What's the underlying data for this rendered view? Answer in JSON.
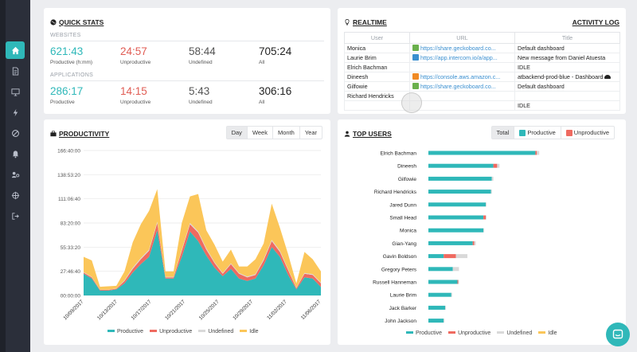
{
  "colors": {
    "teal": "#2fb8b9",
    "red": "#ef6a60",
    "gray": "#d9d9d9",
    "yellow": "#fbc659",
    "url_blue": "#3a8fd0"
  },
  "sidebar": {
    "items": [
      {
        "icon": "home-icon",
        "active": true
      },
      {
        "icon": "document-icon"
      },
      {
        "icon": "monitor-icon"
      },
      {
        "icon": "lightning-icon"
      },
      {
        "icon": "block-icon"
      },
      {
        "icon": "bell-icon"
      },
      {
        "icon": "users-settings-icon"
      },
      {
        "icon": "crosshair-icon"
      },
      {
        "icon": "logout-icon"
      }
    ]
  },
  "quick_stats": {
    "title": "QUICK STATS",
    "sections": [
      {
        "label": "WEBSITES",
        "stats": [
          {
            "value": "621:43",
            "label": "Productive (h:mm)",
            "color": "#2fb8b9"
          },
          {
            "value": "24:57",
            "label": "Unproductive",
            "color": "#e05d55"
          },
          {
            "value": "58:44",
            "label": "Undefined",
            "color": "#555555"
          },
          {
            "value": "705:24",
            "label": "All",
            "color": "#222222"
          }
        ]
      },
      {
        "label": "APPLICATIONS",
        "stats": [
          {
            "value": "286:17",
            "label": "Productive",
            "color": "#2fb8b9"
          },
          {
            "value": "14:15",
            "label": "Unproductive",
            "color": "#e05d55"
          },
          {
            "value": "5:43",
            "label": "Undefined",
            "color": "#555555"
          },
          {
            "value": "306:16",
            "label": "All",
            "color": "#222222"
          }
        ]
      }
    ]
  },
  "realtime": {
    "title": "REALTIME",
    "activity_log": "ACTIVITY LOG",
    "columns": [
      "User",
      "URL",
      "Title"
    ],
    "rows": [
      {
        "user": "Monica",
        "url": "https://share.geckoboard.co...",
        "title": "Default dashboard",
        "fav": "#6ab04c"
      },
      {
        "user": "Laurie Brim",
        "url": "https://app.intercom.io/a/app...",
        "title": "New message from Daniel Atuesta",
        "fav": "#3a8fd0"
      },
      {
        "user": "Elrich Bachman",
        "url": "",
        "title": "IDLE",
        "fav": ""
      },
      {
        "user": "Dineesh",
        "url": "https://console.aws.amazon.c...",
        "title": "atbackend-prod-blue - Dashboard",
        "fav": "#f08a24"
      },
      {
        "user": "Gilfowie",
        "url": "https://share.geckoboard.co...",
        "title": "Default dashboard",
        "fav": "#6ab04c"
      },
      {
        "user": "Richard Hendricks",
        "url": "",
        "title": "",
        "fav": ""
      }
    ],
    "peek_row": "IDLE"
  },
  "productivity": {
    "title": "PRODUCTIVITY",
    "ranges": [
      "Day",
      "Week",
      "Month",
      "Year"
    ],
    "selected_range": "Day"
  },
  "top_users": {
    "title": "TOP USERS",
    "tabs": [
      "Total",
      "Productive",
      "Unproductive"
    ],
    "selected_tab": "Total"
  },
  "chart_data": [
    {
      "type": "area",
      "stacked": true,
      "yticks": [
        "166:40:00",
        "138:53:20",
        "111:06:40",
        "83:20:00",
        "55:33:20",
        "27:46:40",
        "00:00:00"
      ],
      "ylim": [
        0,
        600000
      ],
      "xtick_labels": [
        "10/09/2017",
        "10/13/2017",
        "10/17/2017",
        "10/21/2017",
        "10/25/2017",
        "10/29/2017",
        "11/02/2017",
        "11/06/2017"
      ],
      "x": [
        "10/09",
        "10/10",
        "10/11",
        "10/12",
        "10/13",
        "10/14",
        "10/15",
        "10/16",
        "10/17",
        "10/18",
        "10/19",
        "10/20",
        "10/21",
        "10/22",
        "10/23",
        "10/24",
        "10/25",
        "10/26",
        "10/27",
        "10/28",
        "10/29",
        "10/30",
        "10/31",
        "11/01",
        "11/02",
        "11/03",
        "11/04",
        "11/05",
        "11/06",
        "11/07"
      ],
      "series": [
        {
          "name": "Productive",
          "color": "#2fb8b9",
          "values": [
            90000,
            70000,
            20000,
            20000,
            25000,
            50000,
            95000,
            130000,
            160000,
            270000,
            70000,
            70000,
            160000,
            265000,
            225000,
            165000,
            115000,
            80000,
            110000,
            70000,
            60000,
            70000,
            125000,
            200000,
            160000,
            85000,
            25000,
            75000,
            70000,
            35000
          ]
        },
        {
          "name": "Unproductive",
          "color": "#ef6a60",
          "values": [
            5000,
            5000,
            3000,
            3000,
            3000,
            10000,
            15000,
            20000,
            25000,
            30000,
            5000,
            5000,
            25000,
            30000,
            35000,
            25000,
            20000,
            10000,
            20000,
            20000,
            15000,
            15000,
            20000,
            25000,
            20000,
            20000,
            5000,
            15000,
            15000,
            15000
          ]
        },
        {
          "name": "Undefined",
          "color": "#d9d9d9",
          "values": [
            2000,
            2000,
            1000,
            1000,
            1000,
            3000,
            5000,
            5000,
            5000,
            5000,
            2000,
            2000,
            5000,
            5000,
            5000,
            5000,
            3000,
            3000,
            3000,
            3000,
            3000,
            3000,
            5000,
            5000,
            5000,
            3000,
            2000,
            3000,
            3000,
            3000
          ]
        },
        {
          "name": "Idle",
          "color": "#fbc659",
          "values": [
            63000,
            68000,
            12000,
            14000,
            11000,
            37000,
            105000,
            140000,
            160000,
            135000,
            23000,
            23000,
            110000,
            110000,
            155000,
            75000,
            72000,
            47000,
            57000,
            27000,
            42000,
            62000,
            65000,
            150000,
            95000,
            62000,
            18000,
            87000,
            62000,
            47000
          ]
        }
      ]
    },
    {
      "type": "bar",
      "horizontal": true,
      "stacked": true,
      "categories": [
        "Elrich Bachman",
        "Dineesh",
        "Gilfowie",
        "Richard Hendricks",
        "Jared Dunn",
        "Small Head",
        "Monica",
        "Gian-Yang",
        "Gavin Boldson",
        "Gregory Peters",
        "Russell Hanneman",
        "Laurie Brim",
        "Jack Barker",
        "John Jackson"
      ],
      "xlim": [
        0,
        150
      ],
      "series": [
        {
          "name": "Productive",
          "color": "#2fb8b9",
          "values": [
            140,
            85,
            83,
            82,
            75,
            72,
            72,
            58,
            20,
            32,
            38,
            30,
            22,
            20
          ]
        },
        {
          "name": "Unproductive",
          "color": "#ef6a60",
          "values": [
            2,
            5,
            0,
            0,
            0,
            3,
            0,
            2,
            16,
            0,
            1,
            0,
            0,
            0
          ]
        },
        {
          "name": "Undefined",
          "color": "#d9d9d9",
          "values": [
            3,
            3,
            2,
            1,
            1,
            1,
            1,
            2,
            15,
            8,
            1,
            1,
            1,
            1
          ]
        },
        {
          "name": "Idle",
          "color": "#fbc659",
          "values": [
            0,
            0,
            0,
            0,
            0,
            0,
            0,
            0,
            0,
            0,
            0,
            0,
            0,
            0
          ]
        }
      ]
    }
  ]
}
